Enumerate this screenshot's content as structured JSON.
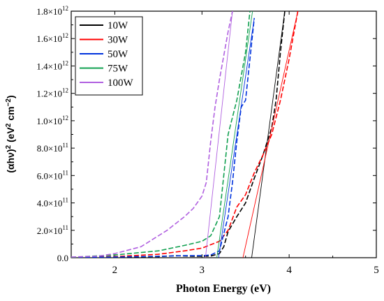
{
  "chart_data": {
    "type": "line",
    "xlabel": "Photon Energy (eV)",
    "ylabel": "(αhν)² (eV² cm⁻²)",
    "ylabel_parts": {
      "main": "(αhν)",
      "sup1": "2",
      "mid": " (eV",
      "sup2": "2",
      "end": " cm",
      "sup3": "−2",
      "close": ")"
    },
    "xlim": [
      1.5,
      5
    ],
    "ylim": [
      0,
      1800000000000.0
    ],
    "x_ticks": [
      2,
      3,
      4,
      5
    ],
    "x_tick_labels": [
      "2",
      "3",
      "4",
      "5"
    ],
    "y_ticks": [
      0,
      200000000000.0,
      400000000000.0,
      600000000000.0,
      800000000000.0,
      1000000000000.0,
      1200000000000.0,
      1400000000000.0,
      1600000000000.0,
      1800000000000.0
    ],
    "y_tick_labels": [
      {
        "base": "0.0",
        "exp": ""
      },
      {
        "base": "2.0×10",
        "exp": "11"
      },
      {
        "base": "4.0×10",
        "exp": "11"
      },
      {
        "base": "6.0×10",
        "exp": "11"
      },
      {
        "base": "8.0×10",
        "exp": "11"
      },
      {
        "base": "1.0×10",
        "exp": "12"
      },
      {
        "base": "1.2×10",
        "exp": "12"
      },
      {
        "base": "1.4×10",
        "exp": "12"
      },
      {
        "base": "1.6×10",
        "exp": "12"
      },
      {
        "base": "1.8×10",
        "exp": "12"
      }
    ],
    "legend_position": "top-left",
    "series": [
      {
        "name": "10W",
        "color": "#000000",
        "points": [
          [
            1.5,
            2000000000.0
          ],
          [
            2.0,
            5000000000.0
          ],
          [
            2.5,
            8000000000.0
          ],
          [
            2.7,
            15000000000.0
          ],
          [
            2.9,
            10000000000.0
          ],
          [
            3.0,
            10000000000.0
          ],
          [
            3.1,
            12000000000.0
          ],
          [
            3.2,
            30000000000.0
          ],
          [
            3.25,
            80000000000.0
          ],
          [
            3.3,
            190000000000.0
          ],
          [
            3.4,
            300000000000.0
          ],
          [
            3.5,
            400000000000.0
          ],
          [
            3.6,
            580000000000.0
          ],
          [
            3.7,
            750000000000.0
          ],
          [
            3.8,
            950000000000.0
          ],
          [
            3.85,
            1150000000000.0
          ],
          [
            3.9,
            1500000000000.0
          ],
          [
            3.95,
            1800000000000.0
          ]
        ],
        "fit": [
          [
            3.57,
            0.0
          ],
          [
            3.95,
            1800000000000.0
          ]
        ]
      },
      {
        "name": "30W",
        "color": "#ff0000",
        "points": [
          [
            1.5,
            3000000000.0
          ],
          [
            2.0,
            8000000000.0
          ],
          [
            2.5,
            25000000000.0
          ],
          [
            2.8,
            50000000000.0
          ],
          [
            3.0,
            70000000000.0
          ],
          [
            3.2,
            120000000000.0
          ],
          [
            3.3,
            200000000000.0
          ],
          [
            3.4,
            370000000000.0
          ],
          [
            3.5,
            460000000000.0
          ],
          [
            3.6,
            620000000000.0
          ],
          [
            3.7,
            750000000000.0
          ],
          [
            3.8,
            900000000000.0
          ],
          [
            3.9,
            1150000000000.0
          ],
          [
            4.0,
            1450000000000.0
          ],
          [
            4.1,
            1800000000000.0
          ]
        ],
        "fit": [
          [
            3.47,
            0.0
          ],
          [
            4.1,
            1800000000000.0
          ]
        ]
      },
      {
        "name": "50W",
        "color": "#0033dd",
        "points": [
          [
            1.5,
            2000000000.0
          ],
          [
            2.0,
            5000000000.0
          ],
          [
            2.5,
            10000000000.0
          ],
          [
            2.8,
            15000000000.0
          ],
          [
            3.0,
            15000000000.0
          ],
          [
            3.1,
            20000000000.0
          ],
          [
            3.2,
            50000000000.0
          ],
          [
            3.3,
            300000000000.0
          ],
          [
            3.35,
            550000000000.0
          ],
          [
            3.4,
            850000000000.0
          ],
          [
            3.45,
            1100000000000.0
          ],
          [
            3.5,
            1150000000000.0
          ],
          [
            3.55,
            1450000000000.0
          ],
          [
            3.6,
            1750000000000.0
          ]
        ],
        "fit": [
          [
            3.19,
            0.0
          ],
          [
            3.6,
            1750000000000.0
          ]
        ]
      },
      {
        "name": "75W",
        "color": "#11a050",
        "points": [
          [
            1.5,
            3000000000.0
          ],
          [
            2.0,
            20000000000.0
          ],
          [
            2.5,
            50000000000.0
          ],
          [
            2.8,
            90000000000.0
          ],
          [
            3.0,
            120000000000.0
          ],
          [
            3.1,
            160000000000.0
          ],
          [
            3.2,
            300000000000.0
          ],
          [
            3.25,
            600000000000.0
          ],
          [
            3.3,
            900000000000.0
          ],
          [
            3.4,
            1150000000000.0
          ],
          [
            3.5,
            1500000000000.0
          ],
          [
            3.55,
            1800000000000.0
          ]
        ],
        "fit": [
          [
            3.17,
            0.0
          ],
          [
            3.58,
            1800000000000.0
          ]
        ]
      },
      {
        "name": "100W",
        "color": "#b060e0",
        "points": [
          [
            1.5,
            5000000000.0
          ],
          [
            1.8,
            10000000000.0
          ],
          [
            2.0,
            30000000000.0
          ],
          [
            2.3,
            80000000000.0
          ],
          [
            2.6,
            200000000000.0
          ],
          [
            2.8,
            300000000000.0
          ],
          [
            2.9,
            360000000000.0
          ],
          [
            3.0,
            450000000000.0
          ],
          [
            3.05,
            550000000000.0
          ],
          [
            3.1,
            850000000000.0
          ],
          [
            3.15,
            1100000000000.0
          ],
          [
            3.2,
            1300000000000.0
          ],
          [
            3.3,
            1650000000000.0
          ],
          [
            3.35,
            1800000000000.0
          ]
        ],
        "fit": [
          [
            3.04,
            0.0
          ],
          [
            3.35,
            1800000000000.0
          ]
        ]
      }
    ]
  }
}
